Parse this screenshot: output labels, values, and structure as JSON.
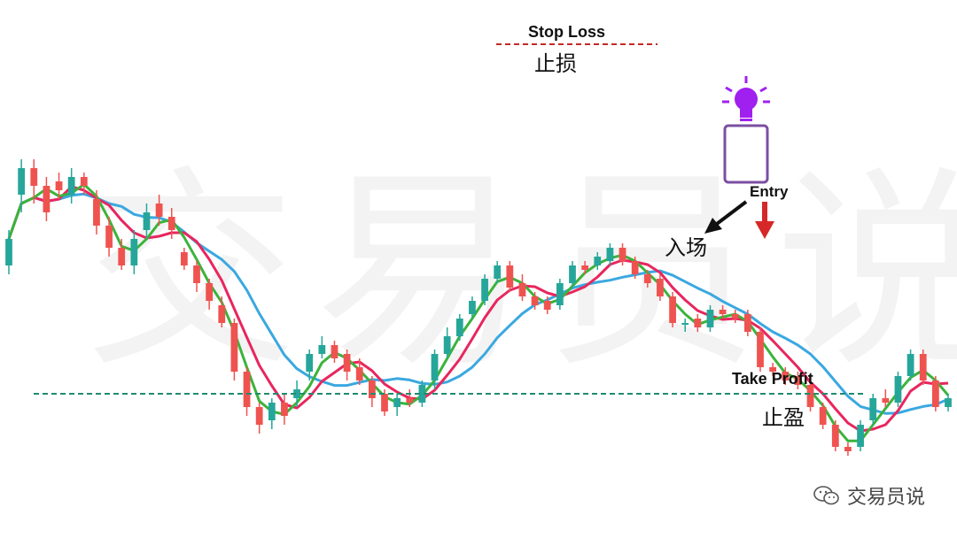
{
  "watermark": "交易员说",
  "annotations": {
    "stop_loss_en": "Stop Loss",
    "stop_loss_cn": "止损",
    "entry_en": "Entry",
    "entry_cn": "入场",
    "take_profit_en": "Take Profit",
    "take_profit_cn": "止盈"
  },
  "footer": {
    "brand": "交易员说",
    "icon": "wechat-icon"
  },
  "colors": {
    "up": "#26a69a",
    "down": "#ef5350",
    "ma_fast": "#3bb33b",
    "ma_mid": "#e8265e",
    "ma_slow": "#3aa8e0",
    "stop_loss_line": "#c62828",
    "take_profit_line": "#1e8c6e",
    "highlight_box": "#7b4fa2",
    "bulb": "#a020f0",
    "entry_arrow_down": "#d62828"
  },
  "chart_data": {
    "type": "candlestick",
    "candles": [
      [
        300,
        330,
        290,
        340
      ],
      [
        380,
        410,
        360,
        420
      ],
      [
        410,
        390,
        370,
        420
      ],
      [
        390,
        360,
        350,
        400
      ],
      [
        395,
        385,
        375,
        405
      ],
      [
        380,
        400,
        370,
        410
      ],
      [
        400,
        390,
        380,
        405
      ],
      [
        375,
        345,
        335,
        385
      ],
      [
        345,
        320,
        310,
        355
      ],
      [
        320,
        300,
        295,
        330
      ],
      [
        300,
        330,
        290,
        340
      ],
      [
        340,
        360,
        330,
        370
      ],
      [
        360,
        375,
        350385
      ],
      [
        370,
        355,
        345,
        380
      ],
      [
        355,
        340,
        330,
        365
      ],
      [
        340,
        320,
        310350
      ],
      [
        315,
        300,
        295,
        320
      ],
      [
        300,
        280,
        270,
        305
      ],
      [
        280,
        260,
        250,
        285
      ],
      [
        255,
        235,
        230,
        265
      ],
      [
        235,
        180,
        170,
        240
      ],
      [
        180,
        140,
        130,
        185
      ],
      [
        140,
        120,
        110,
        145
      ],
      [
        125,
        145,
        115,
        150
      ],
      [
        145,
        130,
        120,
        155
      ],
      [
        150,
        160,
        140,
        170
      ],
      [
        165,
        175,
        160185
      ],
      [
        180,
        200,
        170,
        205
      ],
      [
        200,
        210,
        195,
        220
      ],
      [
        210,
        195,
        190,
        215
      ],
      [
        200,
        180,
        170,
        205
      ],
      [
        185,
        170,
        165,
        195
      ],
      [
        170,
        150,
        140,
        175
      ],
      [
        155,
        135,
        130,
        160
      ],
      [
        140,
        150,
        130,
        155
      ],
      [
        150,
        145,
        140,
        160
      ],
      [
        145,
        165,
        140,
        170
      ],
      [
        170,
        200,
        160,
        205
      ],
      [
        200,
        220,
        195,
        230
      ],
      [
        220,
        240,
        215,
        245
      ],
      [
        240,
        250,
        230255
      ],
      [
        245,
        260,
        240,
        265
      ],
      [
        260,
        285,
        255,
        290
      ],
      [
        285,
        300,
        280,
        305
      ],
      [
        300,
        275,
        270,
        305
      ],
      [
        280,
        265,
        260,
        290
      ],
      [
        265,
        255,
        250,
        270
      ],
      [
        260,
        250,
        245,
        265
      ],
      [
        255,
        280,
        250,
        285
      ],
      [
        280,
        300,
        275,
        305
      ],
      [
        300,
        295,
        290,
        305
      ],
      [
        300,
        310,
        295,
        315
      ],
      [
        305,
        320,
        300,
        325
      ],
      [
        320,
        305,
        300,
        325
      ],
      [
        305,
        290,
        285,
        310
      ],
      [
        290,
        280,
        275,
        295
      ],
      [
        285,
        265,
        260,
        290
      ],
      [
        265,
        235,
        230,
        270
      ],
      [
        235,
        235,
        225,
        240
      ],
      [
        240,
        230,
        225,
        245
      ],
      [
        230,
        250,
        225,
        255
      ],
      [
        250,
        245,
        240,
        255
      ],
      [
        245,
        240,
        235,
        250
      ],
      [
        245,
        225,
        220,
        250
      ],
      [
        225,
        185,
        180,
        230
      ],
      [
        185,
        180,
        175,
        190
      ],
      [
        180,
        170,
        165,
        185
      ],
      [
        175,
        165,
        160,
        180
      ],
      [
        165,
        140,
        135,
        170
      ],
      [
        140,
        120,
        115,
        145
      ],
      [
        120,
        95,
        90,
        125
      ],
      [
        95,
        90,
        85,
        100
      ],
      [
        95,
        120,
        90,
        125
      ],
      [
        125,
        150,
        120,
        155
      ],
      [
        150,
        145,
        140,
        160
      ],
      [
        145,
        175,
        140,
        180
      ],
      [
        175,
        200,
        170,
        205
      ],
      [
        200,
        170,
        165,
        205
      ],
      [
        170,
        140,
        135,
        175
      ],
      [
        140,
        150,
        135,
        155
      ]
    ]
  }
}
